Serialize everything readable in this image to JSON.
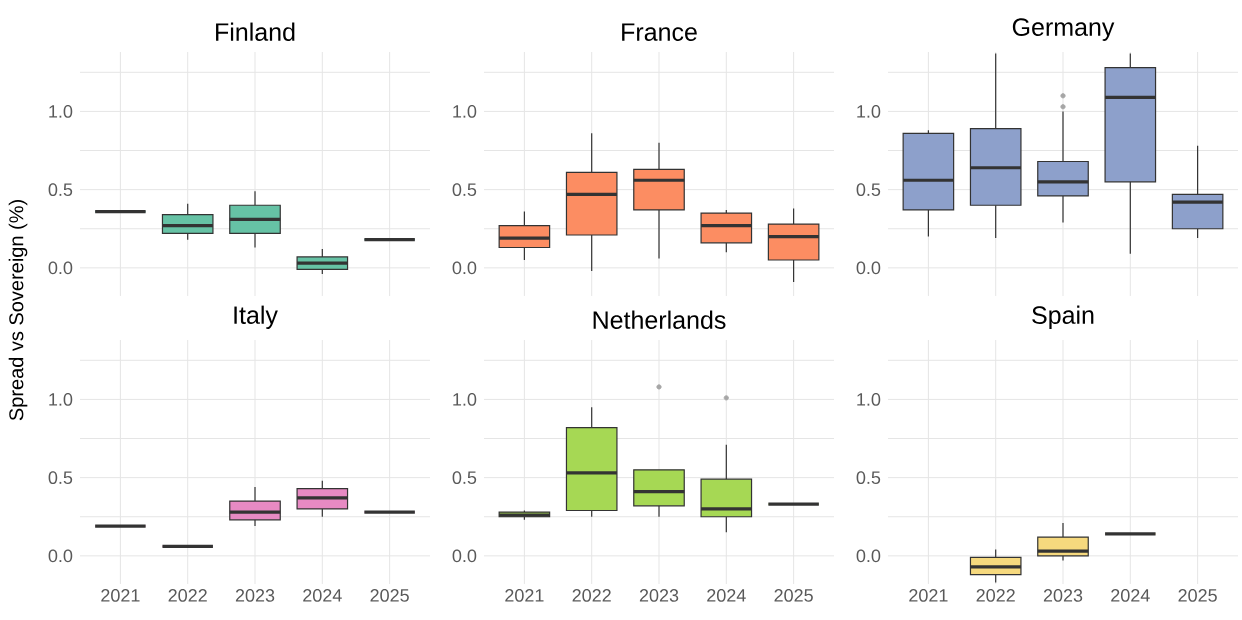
{
  "chart_data": [
    {
      "type": "box",
      "title": "Finland",
      "ylabel": "Spread vs Sovereign (%)",
      "categories": [
        "2021",
        "2022",
        "2023",
        "2024",
        "2025"
      ],
      "color": "#66c2a5",
      "ylim": [
        -0.18,
        1.38
      ],
      "yticks": [
        {
          "value": 0,
          "label": "0.0"
        },
        {
          "value": 0.25,
          "label": null
        },
        {
          "value": 0.5,
          "label": "0.5"
        },
        {
          "value": 0.75,
          "label": null
        },
        {
          "value": 1,
          "label": "1.0"
        },
        {
          "value": 1.25,
          "label": null
        }
      ],
      "grid": true,
      "tick_labels": "y",
      "boxes": [
        {
          "low": 0.36,
          "q1": 0.36,
          "median": 0.36,
          "q3": 0.36,
          "high": 0.36
        },
        {
          "low": 0.18,
          "q1": 0.22,
          "median": 0.27,
          "q3": 0.34,
          "high": 0.41
        },
        {
          "low": 0.13,
          "q1": 0.22,
          "median": 0.31,
          "q3": 0.4,
          "high": 0.49
        },
        {
          "low": -0.04,
          "q1": -0.01,
          "median": 0.03,
          "q3": 0.07,
          "high": 0.12
        },
        {
          "low": 0.18,
          "q1": 0.18,
          "median": 0.18,
          "q3": 0.18,
          "high": 0.18
        }
      ]
    },
    {
      "type": "box",
      "title": "France",
      "categories": [
        "2021",
        "2022",
        "2023",
        "2024",
        "2025"
      ],
      "color": "#fc8d62",
      "ylim": [
        -0.18,
        1.38
      ],
      "yticks": [
        {
          "value": 0,
          "label": "0.0"
        },
        {
          "value": 0.25,
          "label": null
        },
        {
          "value": 0.5,
          "label": "0.5"
        },
        {
          "value": 0.75,
          "label": null
        },
        {
          "value": 1,
          "label": "1.0"
        },
        {
          "value": 1.25,
          "label": null
        }
      ],
      "grid": true,
      "tick_labels": "y",
      "boxes": [
        {
          "low": 0.05,
          "q1": 0.13,
          "median": 0.19,
          "q3": 0.27,
          "high": 0.36
        },
        {
          "low": -0.02,
          "q1": 0.21,
          "median": 0.47,
          "q3": 0.61,
          "high": 0.86
        },
        {
          "low": 0.06,
          "q1": 0.37,
          "median": 0.56,
          "q3": 0.63,
          "high": 0.8
        },
        {
          "low": 0.1,
          "q1": 0.16,
          "median": 0.27,
          "q3": 0.35,
          "high": 0.37
        },
        {
          "low": -0.09,
          "q1": 0.05,
          "median": 0.2,
          "q3": 0.28,
          "high": 0.38
        }
      ]
    },
    {
      "type": "box",
      "title": "Germany",
      "categories": [
        "2021",
        "2022",
        "2023",
        "2024",
        "2025"
      ],
      "color": "#8da0cb",
      "ylim": [
        -0.18,
        1.38
      ],
      "yticks": [
        {
          "value": 0,
          "label": "0.0"
        },
        {
          "value": 0.25,
          "label": null
        },
        {
          "value": 0.5,
          "label": "0.5"
        },
        {
          "value": 0.75,
          "label": null
        },
        {
          "value": 1,
          "label": "1.0"
        },
        {
          "value": 1.25,
          "label": null
        }
      ],
      "grid": true,
      "tick_labels": "y",
      "boxes": [
        {
          "low": 0.2,
          "q1": 0.37,
          "median": 0.56,
          "q3": 0.86,
          "high": 0.88
        },
        {
          "low": 0.19,
          "q1": 0.4,
          "median": 0.64,
          "q3": 0.89,
          "high": 1.37
        },
        {
          "low": 0.29,
          "q1": 0.46,
          "median": 0.55,
          "q3": 0.68,
          "high": 1.0,
          "outliers": [
            1.03,
            1.1
          ]
        },
        {
          "low": 0.09,
          "q1": 0.55,
          "median": 1.09,
          "q3": 1.28,
          "high": 1.37
        },
        {
          "low": 0.19,
          "q1": 0.25,
          "median": 0.42,
          "q3": 0.47,
          "high": 0.78
        }
      ]
    },
    {
      "type": "box",
      "title": "Italy",
      "categories": [
        "2021",
        "2022",
        "2023",
        "2024",
        "2025"
      ],
      "color": "#e78ac3",
      "ylim": [
        -0.18,
        1.38
      ],
      "yticks": [
        {
          "value": 0,
          "label": "0.0"
        },
        {
          "value": 0.25,
          "label": null
        },
        {
          "value": 0.5,
          "label": "0.5"
        },
        {
          "value": 0.75,
          "label": null
        },
        {
          "value": 1,
          "label": "1.0"
        },
        {
          "value": 1.25,
          "label": null
        }
      ],
      "grid": true,
      "boxes": [
        {
          "low": 0.19,
          "q1": 0.19,
          "median": 0.19,
          "q3": 0.19,
          "high": 0.19
        },
        {
          "low": 0.06,
          "q1": 0.06,
          "median": 0.06,
          "q3": 0.06,
          "high": 0.06
        },
        {
          "low": 0.19,
          "q1": 0.23,
          "median": 0.28,
          "q3": 0.35,
          "high": 0.44
        },
        {
          "low": 0.25,
          "q1": 0.3,
          "median": 0.37,
          "q3": 0.43,
          "high": 0.48
        },
        {
          "low": 0.28,
          "q1": 0.28,
          "median": 0.28,
          "q3": 0.28,
          "high": 0.28
        }
      ]
    },
    {
      "type": "box",
      "title": "Netherlands",
      "categories": [
        "2021",
        "2022",
        "2023",
        "2024",
        "2025"
      ],
      "color": "#a6d854",
      "ylim": [
        -0.18,
        1.38
      ],
      "yticks": [
        {
          "value": 0,
          "label": "0.0"
        },
        {
          "value": 0.25,
          "label": null
        },
        {
          "value": 0.5,
          "label": "0.5"
        },
        {
          "value": 0.75,
          "label": null
        },
        {
          "value": 1,
          "label": "1.0"
        },
        {
          "value": 1.25,
          "label": null
        }
      ],
      "grid": true,
      "boxes": [
        {
          "low": 0.23,
          "q1": 0.25,
          "median": 0.26,
          "q3": 0.28,
          "high": 0.29
        },
        {
          "low": 0.25,
          "q1": 0.29,
          "median": 0.53,
          "q3": 0.82,
          "high": 0.95
        },
        {
          "low": 0.25,
          "q1": 0.32,
          "median": 0.41,
          "q3": 0.55,
          "high": 0.55,
          "outliers": [
            1.08
          ]
        },
        {
          "low": 0.15,
          "q1": 0.25,
          "median": 0.3,
          "q3": 0.49,
          "high": 0.71,
          "outliers": [
            1.01
          ]
        },
        {
          "low": 0.33,
          "q1": 0.33,
          "median": 0.33,
          "q3": 0.33,
          "high": 0.33
        }
      ]
    },
    {
      "type": "box",
      "title": "Spain",
      "categories": [
        "2021",
        "2022",
        "2023",
        "2024",
        "2025"
      ],
      "color": "#f6d97e",
      "ylim": [
        -0.18,
        1.38
      ],
      "yticks": [
        {
          "value": 0,
          "label": "0.0"
        },
        {
          "value": 0.25,
          "label": null
        },
        {
          "value": 0.5,
          "label": "0.5"
        },
        {
          "value": 0.75,
          "label": null
        },
        {
          "value": 1,
          "label": "1.0"
        },
        {
          "value": 1.25,
          "label": null
        }
      ],
      "grid": true,
      "boxes": [
        null,
        {
          "low": -0.17,
          "q1": -0.12,
          "median": -0.07,
          "q3": -0.01,
          "high": 0.04
        },
        {
          "low": -0.03,
          "q1": 0.0,
          "median": 0.03,
          "q3": 0.12,
          "high": 0.21
        },
        {
          "low": 0.14,
          "q1": 0.14,
          "median": 0.14,
          "q3": 0.14,
          "high": 0.14
        },
        null
      ]
    }
  ]
}
